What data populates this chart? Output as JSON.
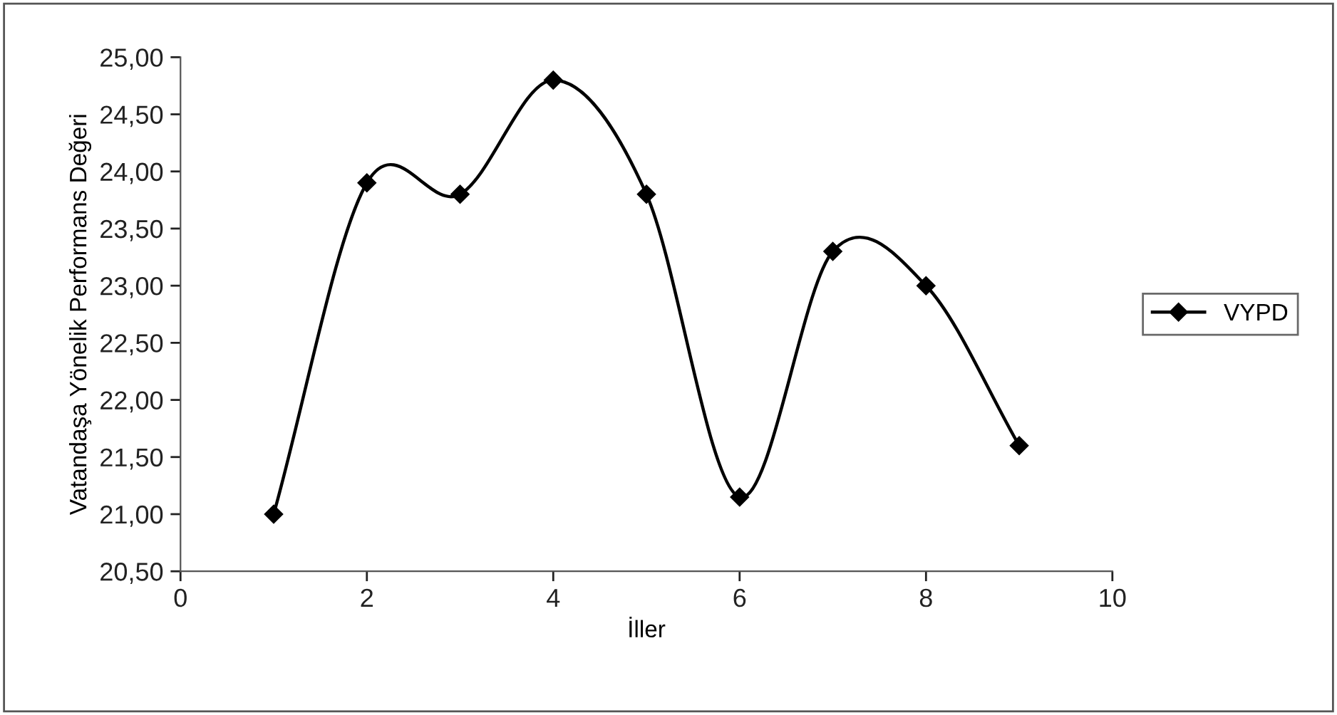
{
  "chart_data": {
    "type": "line",
    "xlabel": "İller",
    "ylabel": "Vatandaşa Yönelik Performans Değeri",
    "x": [
      1,
      2,
      3,
      4,
      5,
      6,
      7,
      8,
      9
    ],
    "series": [
      {
        "name": "VYPD",
        "color": "#000000",
        "values": [
          21.0,
          23.9,
          23.8,
          24.8,
          23.8,
          21.15,
          23.3,
          23.0,
          21.6
        ]
      }
    ],
    "xlim": [
      0,
      10
    ],
    "xticks": [
      0,
      2,
      4,
      6,
      8,
      10
    ],
    "ylim": [
      20.5,
      25.0
    ],
    "yticks": [
      {
        "value": 20.5,
        "label": "20,50"
      },
      {
        "value": 21.0,
        "label": "21,00"
      },
      {
        "value": 21.5,
        "label": "21,50"
      },
      {
        "value": 22.0,
        "label": "22,00"
      },
      {
        "value": 22.5,
        "label": "22,50"
      },
      {
        "value": 23.0,
        "label": "23,00"
      },
      {
        "value": 23.5,
        "label": "23,50"
      },
      {
        "value": 24.0,
        "label": "24,00"
      },
      {
        "value": 24.5,
        "label": "24,50"
      },
      {
        "value": 25.0,
        "label": "25,00"
      }
    ],
    "marker": "diamond",
    "line_style": "solid",
    "grid": false,
    "legend": "right"
  }
}
